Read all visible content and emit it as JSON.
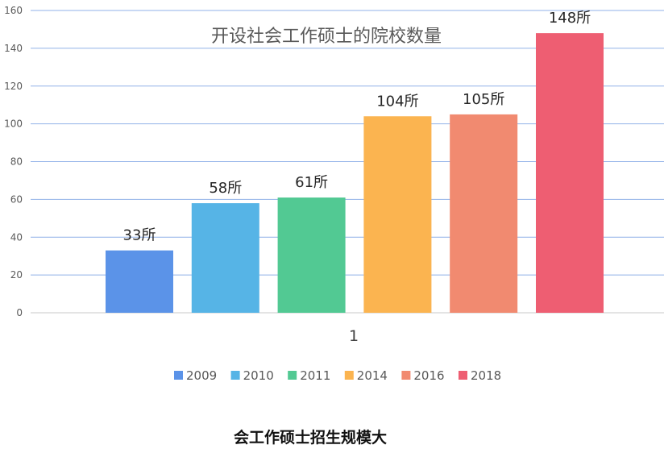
{
  "chart_data": {
    "type": "bar",
    "title": "开设社会工作硕士的院校数量",
    "categories": [
      "1"
    ],
    "ylim": [
      0,
      160
    ],
    "yticks": [
      0,
      20,
      40,
      60,
      80,
      100,
      120,
      140,
      160
    ],
    "grid": true,
    "legend_position": "bottom",
    "unit_suffix": "所",
    "series": [
      {
        "name": "2009",
        "values": [
          33
        ],
        "color": "#5B93E8",
        "label": "33所"
      },
      {
        "name": "2010",
        "values": [
          58
        ],
        "color": "#56B4E6",
        "label": "58所"
      },
      {
        "name": "2011",
        "values": [
          61
        ],
        "color": "#52C993",
        "label": "61所"
      },
      {
        "name": "2014",
        "values": [
          104
        ],
        "color": "#FBB450",
        "label": "104所"
      },
      {
        "name": "2016",
        "values": [
          105
        ],
        "color": "#F18A70",
        "label": "105所"
      },
      {
        "name": "2018",
        "values": [
          148
        ],
        "color": "#EE5E72",
        "label": "148所"
      }
    ]
  },
  "caption": "会工作硕士招生规模大"
}
